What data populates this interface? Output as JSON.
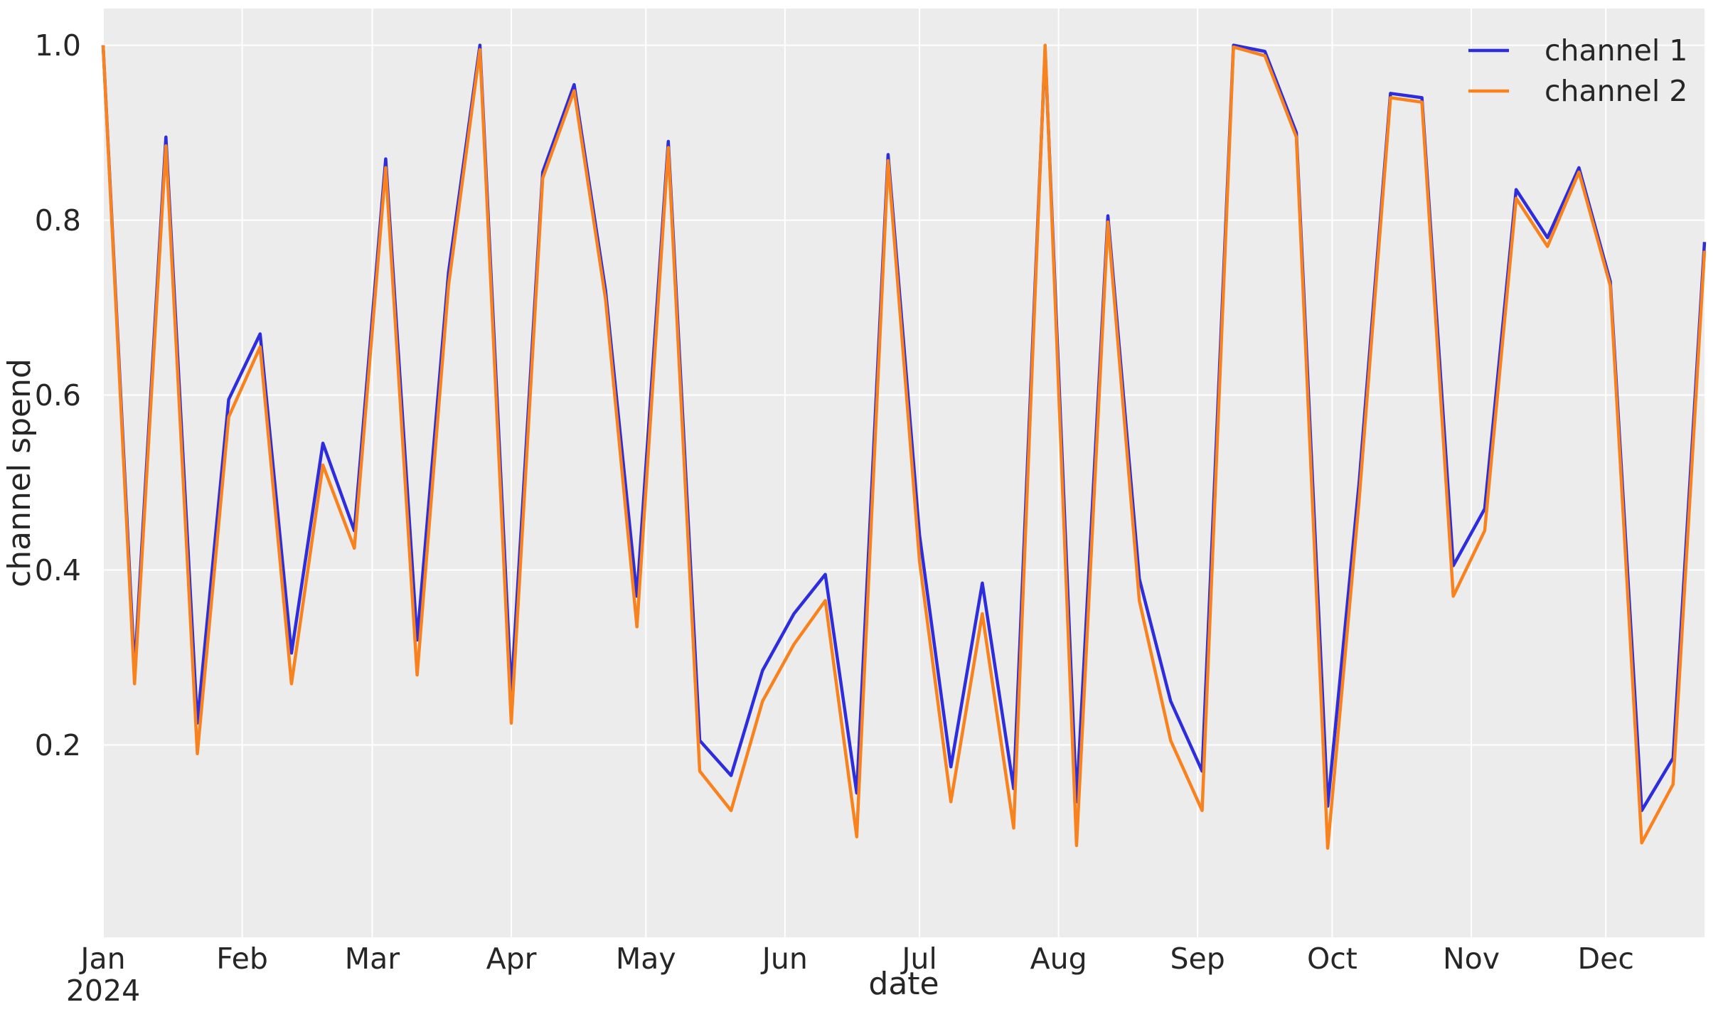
{
  "figure": {
    "kind": "matplotlib-line-chart",
    "background": "#ffffff",
    "plot_background": "#ececec",
    "grid_color": "#ffffff",
    "text_color": "#262626"
  },
  "legend": {
    "entries": [
      {
        "label": "channel 1",
        "color": "#2d2ddd"
      },
      {
        "label": "channel 2",
        "color": "#f8821d"
      }
    ]
  },
  "chart_data": {
    "type": "line",
    "title": "",
    "xlabel": "date",
    "ylabel": "channel spend",
    "grid": true,
    "legend_position": "upper right",
    "xlim": [
      "2024-01-01",
      "2024-12-23"
    ],
    "ylim": [
      -0.02,
      1.042
    ],
    "x_ticks": [
      {
        "label": "Jan",
        "label2": "2024",
        "date": "2024-01-01"
      },
      {
        "label": "Feb",
        "date": "2024-02-01"
      },
      {
        "label": "Mar",
        "date": "2024-03-01"
      },
      {
        "label": "Apr",
        "date": "2024-04-01"
      },
      {
        "label": "May",
        "date": "2024-05-01"
      },
      {
        "label": "Jun",
        "date": "2024-06-01"
      },
      {
        "label": "Jul",
        "date": "2024-07-01"
      },
      {
        "label": "Aug",
        "date": "2024-08-01"
      },
      {
        "label": "Sep",
        "date": "2024-09-01"
      },
      {
        "label": "Oct",
        "date": "2024-10-01"
      },
      {
        "label": "Nov",
        "date": "2024-11-01"
      },
      {
        "label": "Dec",
        "date": "2024-12-01"
      }
    ],
    "y_ticks": [
      {
        "label": "0.2",
        "value": 0.2
      },
      {
        "label": "0.4",
        "value": 0.4
      },
      {
        "label": "0.6",
        "value": 0.6
      },
      {
        "label": "0.8",
        "value": 0.8
      },
      {
        "label": "1.0",
        "value": 1.0
      }
    ],
    "x": [
      "2024-01-01",
      "2024-01-08",
      "2024-01-15",
      "2024-01-22",
      "2024-01-29",
      "2024-02-05",
      "2024-02-12",
      "2024-02-19",
      "2024-02-26",
      "2024-03-04",
      "2024-03-11",
      "2024-03-18",
      "2024-03-25",
      "2024-04-01",
      "2024-04-08",
      "2024-04-15",
      "2024-04-22",
      "2024-04-29",
      "2024-05-06",
      "2024-05-13",
      "2024-05-20",
      "2024-05-27",
      "2024-06-03",
      "2024-06-10",
      "2024-06-17",
      "2024-06-24",
      "2024-07-01",
      "2024-07-08",
      "2024-07-15",
      "2024-07-22",
      "2024-07-29",
      "2024-08-05",
      "2024-08-12",
      "2024-08-19",
      "2024-08-26",
      "2024-09-02",
      "2024-09-09",
      "2024-09-16",
      "2024-09-23",
      "2024-09-30",
      "2024-10-07",
      "2024-10-14",
      "2024-10-21",
      "2024-10-28",
      "2024-11-04",
      "2024-11-11",
      "2024-11-18",
      "2024-11-25",
      "2024-12-02",
      "2024-12-09",
      "2024-12-16",
      "2024-12-23"
    ],
    "series": [
      {
        "name": "channel 1",
        "color": "#2d2ddd",
        "values": [
          1.0,
          0.285,
          0.895,
          0.225,
          0.595,
          0.67,
          0.305,
          0.545,
          0.445,
          0.87,
          0.32,
          0.74,
          1.0,
          0.26,
          0.855,
          0.955,
          0.72,
          0.37,
          0.89,
          0.205,
          0.165,
          0.285,
          0.35,
          0.395,
          0.145,
          0.875,
          0.44,
          0.175,
          0.385,
          0.15,
          0.995,
          0.135,
          0.805,
          0.39,
          0.25,
          0.17,
          1.0,
          0.993,
          0.9,
          0.13,
          0.5,
          0.945,
          0.94,
          0.405,
          0.47,
          0.835,
          0.78,
          0.86,
          0.73,
          0.125,
          0.185,
          0.775
        ]
      },
      {
        "name": "channel 2",
        "color": "#f8821d",
        "values": [
          1.0,
          0.27,
          0.885,
          0.19,
          0.575,
          0.655,
          0.27,
          0.52,
          0.425,
          0.86,
          0.28,
          0.725,
          0.995,
          0.225,
          0.848,
          0.948,
          0.71,
          0.335,
          0.883,
          0.17,
          0.125,
          0.25,
          0.315,
          0.365,
          0.095,
          0.868,
          0.41,
          0.135,
          0.35,
          0.105,
          1.0,
          0.085,
          0.798,
          0.365,
          0.205,
          0.125,
          0.998,
          0.988,
          0.895,
          0.082,
          0.48,
          0.94,
          0.935,
          0.37,
          0.445,
          0.825,
          0.77,
          0.855,
          0.725,
          0.088,
          0.155,
          0.765
        ]
      }
    ]
  }
}
